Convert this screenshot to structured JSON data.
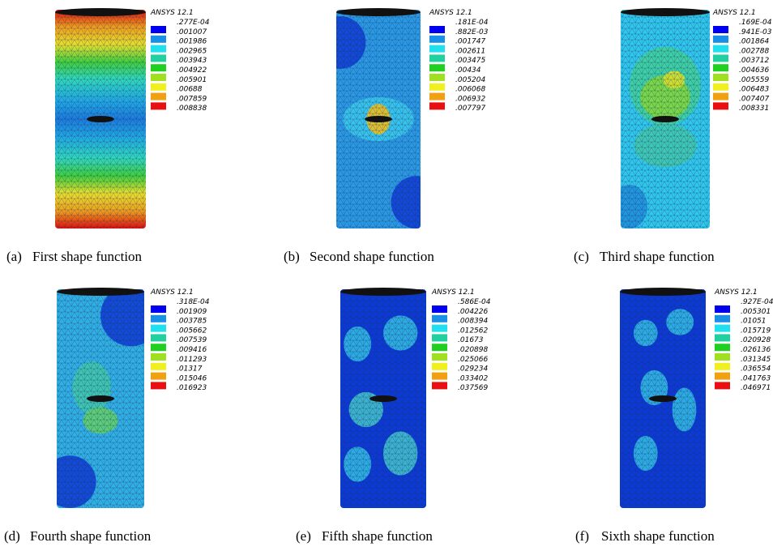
{
  "figure": {
    "panels": [
      {
        "software": "ANSYS 12.1",
        "legend": [
          ".277E-04",
          ".001007",
          ".001986",
          ".002965",
          ".003943",
          ".004922",
          ".005901",
          ".00688",
          ".007859",
          ".008838"
        ],
        "label": "(a)",
        "caption": "First shape function"
      },
      {
        "software": "ANSYS 12.1",
        "legend": [
          ".181E-04",
          ".882E-03",
          ".001747",
          ".002611",
          ".003475",
          ".00434",
          ".005204",
          ".006068",
          ".006932",
          ".007797"
        ],
        "label": "(b)",
        "caption": "Second shape function"
      },
      {
        "software": "ANSYS 12.1",
        "legend": [
          ".169E-04",
          ".941E-03",
          ".001864",
          ".002788",
          ".003712",
          ".004636",
          ".005559",
          ".006483",
          ".007407",
          ".008331"
        ],
        "label": "(c)",
        "caption": "Third shape function"
      },
      {
        "software": "ANSYS 12.1",
        "legend": [
          ".318E-04",
          ".001909",
          ".003785",
          ".005662",
          ".007539",
          ".009416",
          ".011293",
          ".01317",
          ".015046",
          ".016923"
        ],
        "label": "(d)",
        "caption": "Fourth shape function"
      },
      {
        "software": "ANSYS 12.1",
        "legend": [
          ".586E-04",
          ".004226",
          ".008394",
          ".012562",
          ".01673",
          ".020898",
          ".025066",
          ".029234",
          ".033402",
          ".037569"
        ],
        "label": "(e)",
        "caption": "Fifth shape function"
      },
      {
        "software": "ANSYS 12.1",
        "legend": [
          ".927E-04",
          ".005301",
          ".01051",
          ".015719",
          ".020928",
          ".026136",
          ".031345",
          ".036554",
          ".041763",
          ".046971"
        ],
        "label": "(f)",
        "caption": "Sixth shape function"
      }
    ]
  }
}
